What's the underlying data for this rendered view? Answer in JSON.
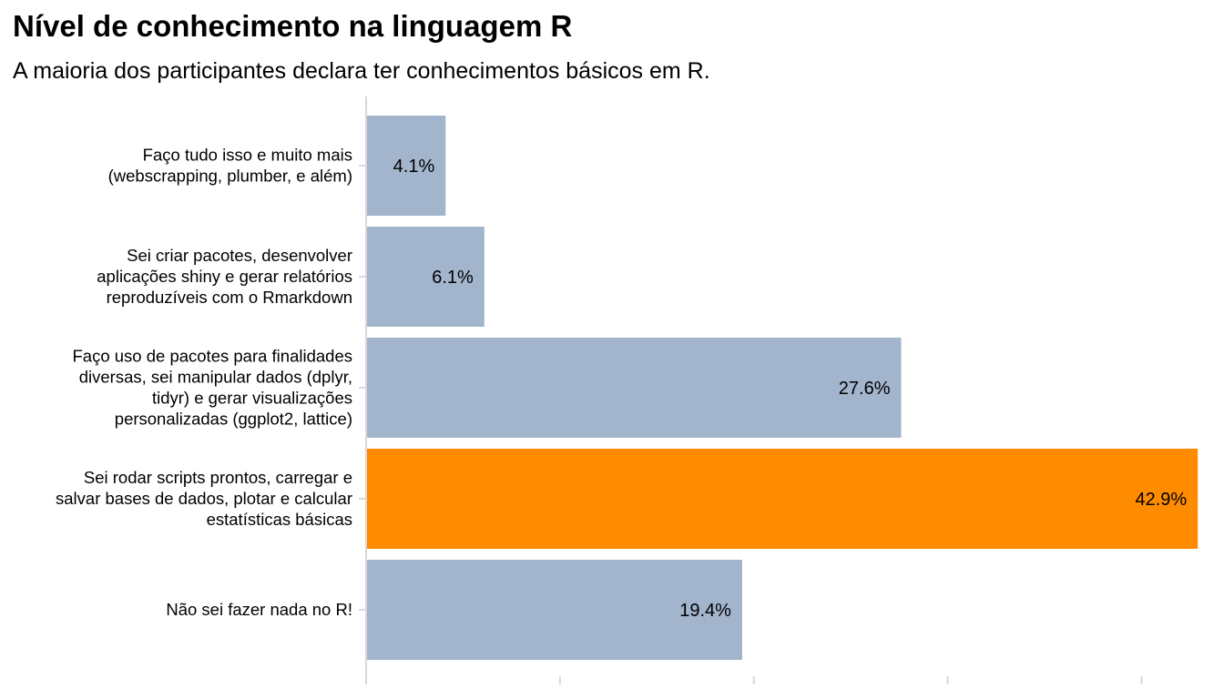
{
  "title": "Nível de conhecimento na linguagem R",
  "subtitle": "A maioria dos participantes declara ter conhecimentos básicos em R.",
  "colors": {
    "default_bar": "#a2b5cd",
    "highlight_bar": "#ff8c00",
    "axis": "#d9d9d9",
    "text": "#000000"
  },
  "chart_data": {
    "type": "bar",
    "orientation": "horizontal",
    "title": "Nível de conhecimento na linguagem R",
    "subtitle": "A maioria dos participantes declara ter conhecimentos básicos em R.",
    "xlabel": "",
    "ylabel": "",
    "xlim": [
      0,
      43.5
    ],
    "x_ticks": [
      0,
      10,
      20,
      30,
      40
    ],
    "grid": false,
    "highlight": "Sei rodar scripts prontos, carregar e salvar bases de dados, plotar e calcular estatísticas básicas",
    "categories": [
      "Faço tudo isso e muito mais (webscrapping, plumber, e além)",
      "Sei criar pacotes, desenvolver aplicações shiny e gerar relatórios reproduzíveis com o Rmarkdown",
      "Faço uso de pacotes para finalidades diversas, sei manipular dados (dplyr, tidyr) e gerar visualizações personalizadas (ggplot2, lattice)",
      "Sei rodar scripts prontos, carregar e salvar bases de dados, plotar e calcular estatísticas básicas",
      "Não sei fazer nada no R!"
    ],
    "category_label_lines": [
      [
        "Faço tudo isso e muito mais",
        "(webscrapping, plumber, e além)"
      ],
      [
        "Sei criar pacotes, desenvolver",
        "aplicações shiny e gerar relatórios",
        "reproduzíveis com o Rmarkdown"
      ],
      [
        "Faço uso de pacotes para finalidades",
        "diversas, sei manipular dados (dplyr,",
        "tidyr) e gerar visualizações",
        "personalizadas (ggplot2, lattice)"
      ],
      [
        "Sei rodar scripts prontos, carregar e",
        "salvar bases de dados, plotar e calcular",
        "estatísticas básicas"
      ],
      [
        "Não sei fazer nada no R!"
      ]
    ],
    "values": [
      4.1,
      6.1,
      27.6,
      42.9,
      19.4
    ],
    "value_labels": [
      "4.1%",
      "6.1%",
      "27.6%",
      "42.9%",
      "19.4%"
    ]
  }
}
